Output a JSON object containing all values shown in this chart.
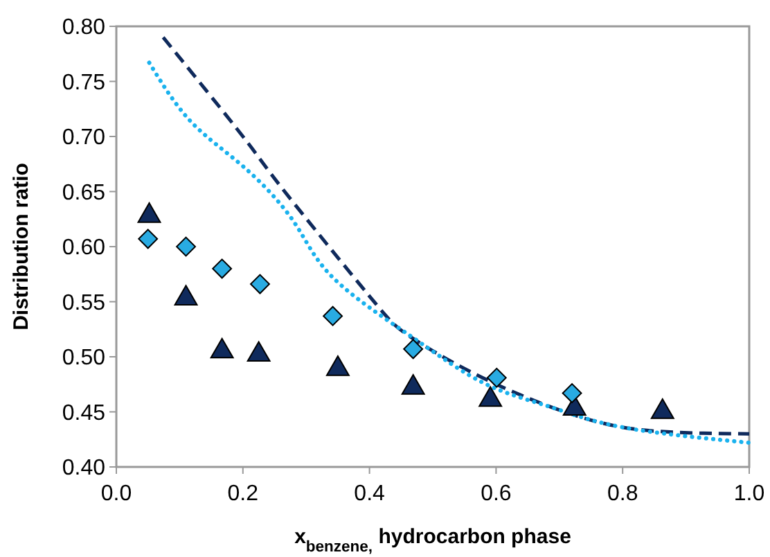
{
  "chart_data": {
    "type": "scatter",
    "xlabel": "x$_{benzene,}$ hydrocarbon phase",
    "ylabel": "Distribution ratio",
    "xlim": [
      0,
      1
    ],
    "xticks": [
      {
        "value": 0,
        "label": "0.0"
      },
      0.2,
      0.4,
      0.6,
      0.8,
      {
        "value": 1,
        "label": "1.0"
      }
    ],
    "ylim": [
      0.4,
      0.8
    ],
    "yticks": [
      {
        "value": 0.4,
        "label": "0.40"
      },
      0.45,
      {
        "value": 0.5,
        "label": "0.50"
      },
      0.55,
      {
        "value": 0.6,
        "label": "0.60"
      },
      0.65,
      {
        "value": 0.7,
        "label": "0.70"
      },
      0.75,
      {
        "value": 0.8,
        "label": "0.80"
      }
    ],
    "grid": false,
    "series": [
      {
        "type": "line",
        "color": "#0f2a5c",
        "marker": "none",
        "line_style": "dashed",
        "x": [
          0.074,
          0.2,
          0.266,
          0.4,
          0.465,
          0.582,
          0.741,
          0.865,
          1.0
        ],
        "values": [
          0.79,
          0.7,
          0.65,
          0.555,
          0.518,
          0.48,
          0.444,
          0.432,
          0.43
        ]
      },
      {
        "type": "line",
        "color": "#1ab2ee",
        "marker": "none",
        "line_style": "dotted",
        "x": [
          0.052,
          0.117,
          0.2,
          0.28,
          0.342,
          0.467,
          0.581,
          0.683,
          0.8,
          1.0
        ],
        "values": [
          0.767,
          0.714,
          0.673,
          0.623,
          0.572,
          0.518,
          0.476,
          0.455,
          0.436,
          0.422
        ]
      },
      {
        "color": "#0f2a5c",
        "marker": "triangle",
        "x": [
          0.052,
          0.11,
          0.167,
          0.225,
          0.35,
          0.469,
          0.591,
          0.724,
          0.863
        ],
        "values": [
          0.628,
          0.553,
          0.505,
          0.502,
          0.489,
          0.472,
          0.461,
          0.453,
          0.45
        ]
      },
      {
        "color": "#29abe2",
        "marker": "diamond",
        "x": [
          0.05,
          0.11,
          0.167,
          0.227,
          0.342,
          0.469,
          0.601,
          0.72
        ],
        "values": [
          0.607,
          0.6,
          0.58,
          0.566,
          0.537,
          0.507,
          0.481,
          0.467
        ]
      }
    ]
  }
}
